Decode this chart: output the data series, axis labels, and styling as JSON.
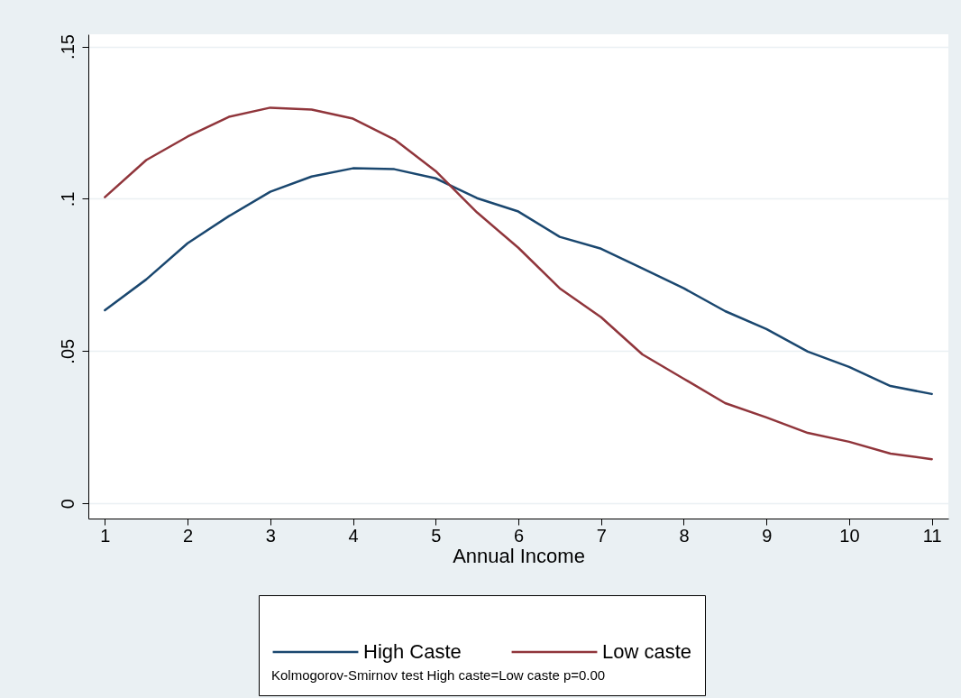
{
  "chart_data": {
    "type": "line",
    "xlabel": "Annual Income",
    "xlim": [
      0.8,
      11.2
    ],
    "ylim": [
      -0.005,
      0.154
    ],
    "xticks": [
      1,
      2,
      3,
      4,
      5,
      6,
      7,
      8,
      9,
      10,
      11
    ],
    "yticks": [
      {
        "value": 0,
        "label": "0"
      },
      {
        "value": 0.05,
        "label": ".05"
      },
      {
        "value": 0.1,
        "label": ".1"
      },
      {
        "value": 0.15,
        "label": ".15"
      }
    ],
    "grid": "y",
    "legend": "bottom",
    "annotations": [
      "Kolmogorov-Smirnov test High caste=Low caste p=0.00"
    ],
    "x": [
      1,
      1.5,
      2,
      2.5,
      3,
      3.5,
      4,
      4.5,
      5,
      5.5,
      6,
      6.5,
      7,
      7.5,
      8,
      8.5,
      9,
      9.5,
      10,
      10.5,
      11
    ],
    "series": [
      {
        "name": "High Caste",
        "color": "#1a476f",
        "values": [
          0.0634,
          0.0735,
          0.0854,
          0.0943,
          0.1023,
          0.1073,
          0.11,
          0.1097,
          0.1067,
          0.1002,
          0.0958,
          0.0875,
          0.0836,
          0.0771,
          0.0706,
          0.0631,
          0.0572,
          0.0498,
          0.0448,
          0.0385,
          0.0359
        ]
      },
      {
        "name": "Low caste",
        "color": "#90353b",
        "values": [
          0.1005,
          0.1127,
          0.1204,
          0.1269,
          0.1299,
          0.1293,
          0.1263,
          0.1195,
          0.1091,
          0.0955,
          0.0839,
          0.0706,
          0.0611,
          0.0489,
          0.0409,
          0.0329,
          0.0282,
          0.0231,
          0.0202,
          0.0163,
          0.0145
        ]
      }
    ]
  }
}
